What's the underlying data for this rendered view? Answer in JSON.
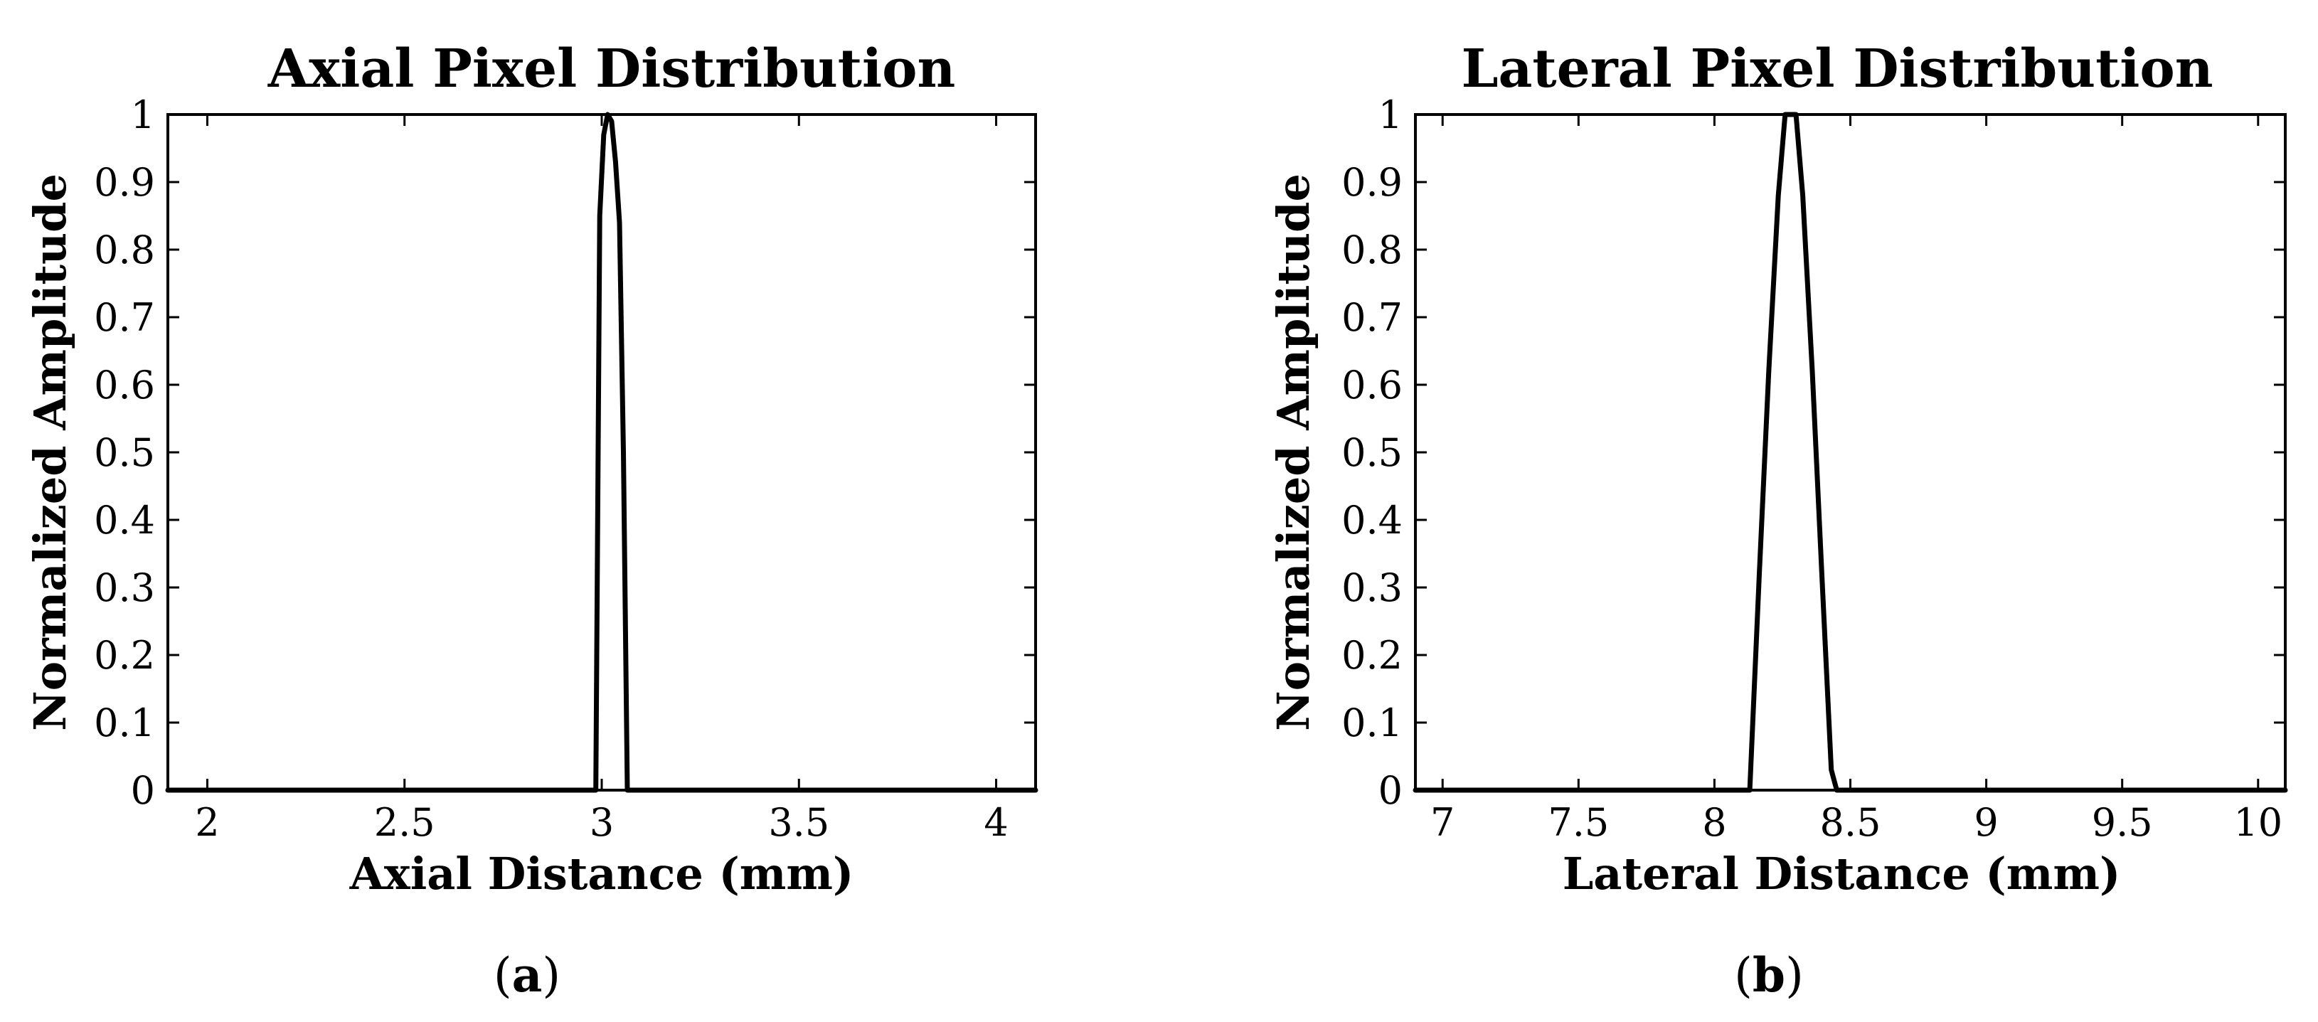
{
  "chart_data": [
    {
      "type": "line",
      "title": "Axial Pixel Distribution",
      "xlabel": "Axial Distance (mm)",
      "ylabel": "Normalized Amplitude",
      "xlim": [
        1.9,
        4.1
      ],
      "ylim": [
        0,
        1
      ],
      "xticks": [
        "2",
        "2.5",
        "3",
        "3.5",
        "4"
      ],
      "xtick_values": [
        2,
        2.5,
        3,
        3.5,
        4
      ],
      "yticks": [
        "0",
        "0.1",
        "0.2",
        "0.3",
        "0.4",
        "0.5",
        "0.6",
        "0.7",
        "0.8",
        "0.9",
        "1"
      ],
      "ytick_values": [
        0,
        0.1,
        0.2,
        0.3,
        0.4,
        0.5,
        0.6,
        0.7,
        0.8,
        0.9,
        1
      ],
      "grid": false,
      "line_color": "#000000",
      "series": [
        {
          "x": [
            1.9,
            2.985,
            2.995,
            3.005,
            3.015,
            3.025,
            3.035,
            3.045,
            3.055,
            3.065,
            4.1
          ],
          "y": [
            0,
            0,
            0.85,
            0.97,
            1.0,
            0.99,
            0.93,
            0.84,
            0.5,
            0,
            0
          ]
        }
      ],
      "panel_label": {
        "open": "(",
        "letter": "a",
        "close": ")"
      }
    },
    {
      "type": "line",
      "title": "Lateral Pixel Distribution",
      "xlabel": "Lateral Distance (mm)",
      "ylabel": "Normalized Amplitude",
      "xlim": [
        6.9,
        10.1
      ],
      "ylim": [
        0,
        1
      ],
      "xticks": [
        "7",
        "7.5",
        "8",
        "8.5",
        "9",
        "9.5",
        "10"
      ],
      "xtick_values": [
        7,
        7.5,
        8,
        8.5,
        9,
        9.5,
        10
      ],
      "yticks": [
        "0",
        "0.1",
        "0.2",
        "0.3",
        "0.4",
        "0.5",
        "0.6",
        "0.7",
        "0.8",
        "0.9",
        "1"
      ],
      "ytick_values": [
        0,
        0.1,
        0.2,
        0.3,
        0.4,
        0.5,
        0.6,
        0.7,
        0.8,
        0.9,
        1
      ],
      "grid": false,
      "line_color": "#000000",
      "series": [
        {
          "x": [
            6.9,
            8.13,
            8.165,
            8.2,
            8.235,
            8.26,
            8.3,
            8.325,
            8.36,
            8.395,
            8.43,
            8.45,
            10.1
          ],
          "y": [
            0,
            0,
            0.32,
            0.62,
            0.88,
            1.0,
            1.0,
            0.88,
            0.62,
            0.32,
            0.03,
            0,
            0
          ]
        }
      ],
      "panel_label": {
        "open": "(",
        "letter": "b",
        "close": ")"
      }
    }
  ]
}
